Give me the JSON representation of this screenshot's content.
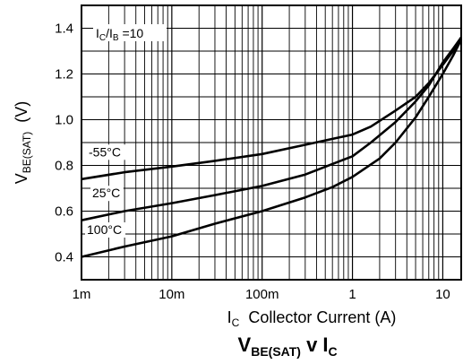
{
  "chart_data": {
    "type": "line",
    "title": {
      "main": "V",
      "main_sub": "BE(SAT)",
      "mid": " v I",
      "mid_sub": "C"
    },
    "ylabel": {
      "main": "V",
      "sub": "BE(SAT)",
      "unit": "  (V)"
    },
    "xlabel": {
      "main": "I",
      "sub": "C",
      "rest": "  Collector Current (A)"
    },
    "x_scale": "log",
    "xlim": [
      0.001,
      16
    ],
    "ylim": [
      0.3,
      1.5
    ],
    "x_ticks": [
      {
        "value": 0.001,
        "label": "1m"
      },
      {
        "value": 0.01,
        "label": "10m"
      },
      {
        "value": 0.1,
        "label": "100m"
      },
      {
        "value": 1,
        "label": "1"
      },
      {
        "value": 10,
        "label": "10"
      }
    ],
    "y_ticks": [
      {
        "value": 0.4,
        "label": "0.4"
      },
      {
        "value": 0.6,
        "label": "0.6"
      },
      {
        "value": 0.8,
        "label": "0.8"
      },
      {
        "value": 1.0,
        "label": "1.0"
      },
      {
        "value": 1.2,
        "label": "1.2"
      },
      {
        "value": 1.4,
        "label": "1.4"
      }
    ],
    "grid": true,
    "condition": {
      "a": "I",
      "a_sub": "C",
      "sep": "/I",
      "b_sub": "B",
      "rest": " =10"
    },
    "series": [
      {
        "name": "-55°C",
        "x": [
          0.001,
          0.003,
          0.01,
          0.03,
          0.1,
          0.3,
          1,
          1.6,
          3,
          5,
          7,
          10,
          13,
          16
        ],
        "y": [
          0.74,
          0.77,
          0.795,
          0.82,
          0.85,
          0.89,
          0.935,
          0.97,
          1.04,
          1.1,
          1.16,
          1.24,
          1.3,
          1.36
        ]
      },
      {
        "name": "25°C",
        "x": [
          0.001,
          0.003,
          0.01,
          0.03,
          0.1,
          0.3,
          1,
          1.6,
          3,
          5,
          7,
          10,
          13,
          16
        ],
        "y": [
          0.56,
          0.6,
          0.635,
          0.67,
          0.71,
          0.76,
          0.84,
          0.9,
          0.99,
          1.08,
          1.15,
          1.25,
          1.31,
          1.36
        ]
      },
      {
        "name": "100°C",
        "x": [
          0.001,
          0.003,
          0.01,
          0.03,
          0.1,
          0.3,
          0.6,
          1,
          2,
          3,
          5,
          7,
          10,
          13,
          16
        ],
        "y": [
          0.4,
          0.445,
          0.49,
          0.545,
          0.6,
          0.66,
          0.705,
          0.75,
          0.83,
          0.9,
          1.01,
          1.1,
          1.2,
          1.28,
          1.35
        ]
      }
    ]
  }
}
